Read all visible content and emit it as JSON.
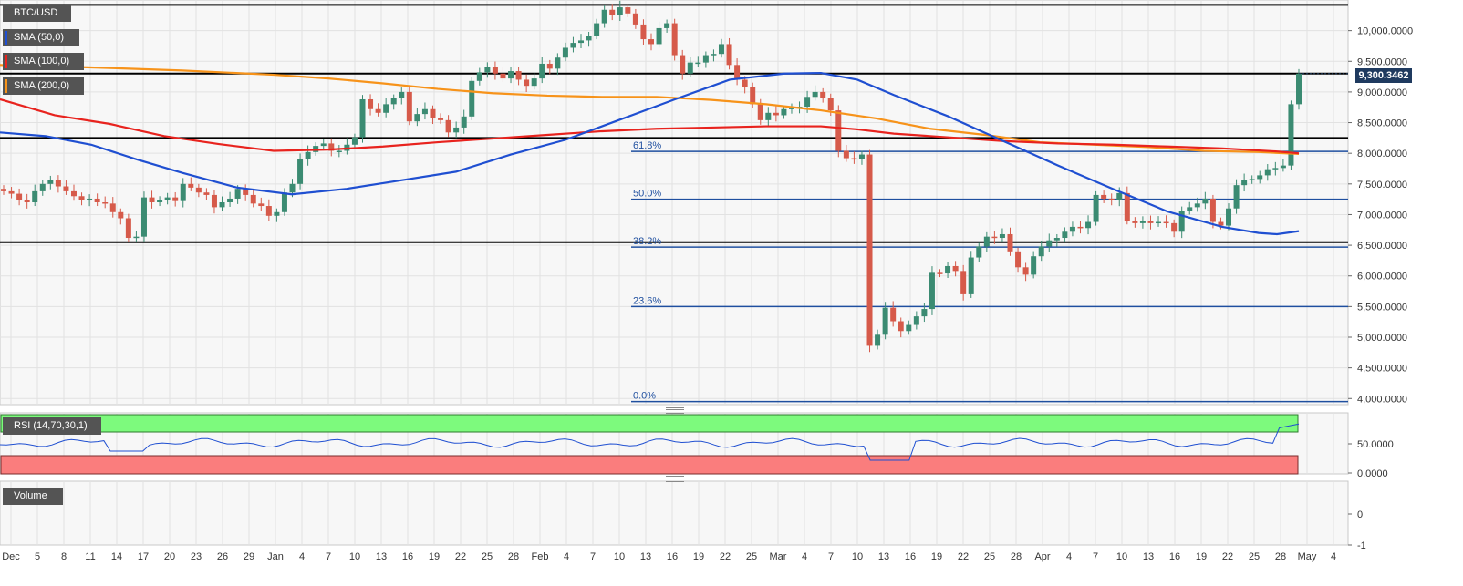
{
  "legend": {
    "pair": "BTC/USD",
    "sma50": "SMA (50,0)",
    "sma100": "SMA (100,0)",
    "sma200": "SMA (200,0)",
    "rsi": "RSI (14,70,30,1)",
    "volume": "Volume"
  },
  "colors": {
    "up": "#3b8b72",
    "down": "#d65a4a",
    "sma50": "#1f4fd1",
    "sma100": "#e8231e",
    "sma200": "#f7931a",
    "level": "#000000",
    "fib": "#1f4f9f",
    "rsi_overbought": "#7dfa7d",
    "rsi_oversold": "#fa7d7d",
    "panel_bg": "#f7f7f7"
  },
  "chart_data": {
    "type": "candlestick",
    "symbol": "BTC/USD",
    "last_price": "9,300.3462",
    "price_axis": {
      "min": 3900,
      "max": 10500,
      "ticks": [
        "10,000.0000",
        "9,500.0000",
        "9,000.0000",
        "8,500.0000",
        "8,000.0000",
        "7,500.0000",
        "7,000.0000",
        "6,500.0000",
        "6,000.0000",
        "5,500.0000",
        "5,000.0000",
        "4,500.0000",
        "4,000.0000"
      ]
    },
    "rsi_axis": {
      "ticks": [
        "50.0000",
        "0.0000"
      ]
    },
    "volume_axis": {
      "ticks": [
        "0",
        "-1"
      ]
    },
    "date_ticks": [
      "Dec",
      "5",
      "8",
      "11",
      "14",
      "17",
      "20",
      "23",
      "26",
      "29",
      "Jan",
      "4",
      "7",
      "10",
      "13",
      "16",
      "19",
      "22",
      "25",
      "28",
      "Feb",
      "4",
      "7",
      "10",
      "13",
      "16",
      "19",
      "22",
      "25",
      "Mar",
      "4",
      "7",
      "10",
      "13",
      "16",
      "19",
      "22",
      "25",
      "28",
      "Apr",
      "4",
      "7",
      "10",
      "13",
      "16",
      "19",
      "22",
      "25",
      "28",
      "May",
      "4"
    ],
    "horizontal_levels": [
      10420,
      9300,
      8250,
      6550
    ],
    "fibonacci": [
      {
        "label": "61.8%",
        "value": 8030
      },
      {
        "label": "50.0%",
        "value": 7250
      },
      {
        "label": "38.2%",
        "value": 6470
      },
      {
        "label": "23.6%",
        "value": 5500
      },
      {
        "label": "0.0%",
        "value": 3950
      }
    ],
    "candles_close": [
      7380,
      7340,
      7240,
      7200,
      7380,
      7500,
      7560,
      7460,
      7380,
      7300,
      7240,
      7260,
      7200,
      7180,
      7040,
      6940,
      6620,
      6640,
      7280,
      7200,
      7240,
      7280,
      7220,
      7500,
      7440,
      7360,
      7320,
      7120,
      7200,
      7260,
      7420,
      7320,
      7180,
      7140,
      6980,
      7040,
      7360,
      7500,
      7900,
      8020,
      8120,
      8160,
      8040,
      8040,
      8140,
      8260,
      8880,
      8720,
      8660,
      8800,
      8900,
      9000,
      8520,
      8640,
      8720,
      8580,
      8540,
      8340,
      8420,
      8600,
      9180,
      9320,
      9400,
      9300,
      9220,
      9340,
      9200,
      9100,
      9220,
      9460,
      9380,
      9560,
      9720,
      9800,
      9840,
      9920,
      10120,
      10340,
      10260,
      10380,
      10280,
      10100,
      9860,
      9780,
      10040,
      10120,
      9600,
      9300,
      9480,
      9480,
      9600,
      9620,
      9780,
      9440,
      9200,
      9080,
      8800,
      8540,
      8660,
      8620,
      8720,
      8740,
      8760,
      8920,
      9000,
      8900,
      8700,
      8040,
      7920,
      7900,
      7980,
      4860,
      5040,
      5480,
      5260,
      5100,
      5200,
      5340,
      5460,
      6050,
      6040,
      6160,
      6080,
      5700,
      6300,
      6480,
      6640,
      6620,
      6680,
      6400,
      6140,
      6020,
      6320,
      6480,
      6580,
      6620,
      6720,
      6800,
      6780,
      6880,
      7320,
      7260,
      7240,
      7350,
      6900,
      6860,
      6900,
      6860,
      6880,
      6860,
      6720,
      7060,
      7120,
      7180,
      7260,
      6880,
      6820,
      7100,
      7480,
      7560,
      7580,
      7640,
      7740,
      7760,
      7800,
      8800,
      9300
    ],
    "sma50": [
      [
        0,
        8340
      ],
      [
        50,
        8280
      ],
      [
        100,
        8140
      ],
      [
        150,
        7900
      ],
      [
        200,
        7680
      ],
      [
        260,
        7440
      ],
      [
        320,
        7330
      ],
      [
        380,
        7420
      ],
      [
        440,
        7560
      ],
      [
        500,
        7700
      ],
      [
        560,
        7980
      ],
      [
        620,
        8220
      ],
      [
        680,
        8550
      ],
      [
        740,
        8880
      ],
      [
        800,
        9200
      ],
      [
        860,
        9300
      ],
      [
        900,
        9310
      ],
      [
        940,
        9200
      ],
      [
        980,
        8950
      ],
      [
        1040,
        8600
      ],
      [
        1100,
        8200
      ],
      [
        1160,
        7800
      ],
      [
        1220,
        7420
      ],
      [
        1280,
        7050
      ],
      [
        1340,
        6800
      ],
      [
        1380,
        6700
      ],
      [
        1400,
        6680
      ],
      [
        1424,
        6730
      ]
    ],
    "sma100": [
      [
        0,
        8880
      ],
      [
        60,
        8620
      ],
      [
        120,
        8480
      ],
      [
        180,
        8280
      ],
      [
        240,
        8150
      ],
      [
        300,
        8040
      ],
      [
        360,
        8060
      ],
      [
        420,
        8110
      ],
      [
        480,
        8180
      ],
      [
        540,
        8240
      ],
      [
        600,
        8300
      ],
      [
        660,
        8360
      ],
      [
        720,
        8400
      ],
      [
        780,
        8420
      ],
      [
        840,
        8440
      ],
      [
        900,
        8440
      ],
      [
        940,
        8390
      ],
      [
        980,
        8320
      ],
      [
        1040,
        8260
      ],
      [
        1100,
        8200
      ],
      [
        1160,
        8160
      ],
      [
        1220,
        8140
      ],
      [
        1280,
        8110
      ],
      [
        1340,
        8080
      ],
      [
        1400,
        8030
      ],
      [
        1424,
        8000
      ]
    ],
    "sma200": [
      [
        0,
        9440
      ],
      [
        100,
        9400
      ],
      [
        200,
        9350
      ],
      [
        300,
        9280
      ],
      [
        360,
        9220
      ],
      [
        420,
        9140
      ],
      [
        480,
        9050
      ],
      [
        540,
        8980
      ],
      [
        600,
        8940
      ],
      [
        660,
        8920
      ],
      [
        720,
        8920
      ],
      [
        780,
        8870
      ],
      [
        840,
        8800
      ],
      [
        900,
        8700
      ],
      [
        960,
        8570
      ],
      [
        1020,
        8400
      ],
      [
        1080,
        8300
      ],
      [
        1140,
        8180
      ],
      [
        1200,
        8140
      ],
      [
        1260,
        8100
      ],
      [
        1320,
        8040
      ],
      [
        1380,
        8020
      ],
      [
        1424,
        7990
      ]
    ],
    "rsi_latest_context": "overbought"
  }
}
